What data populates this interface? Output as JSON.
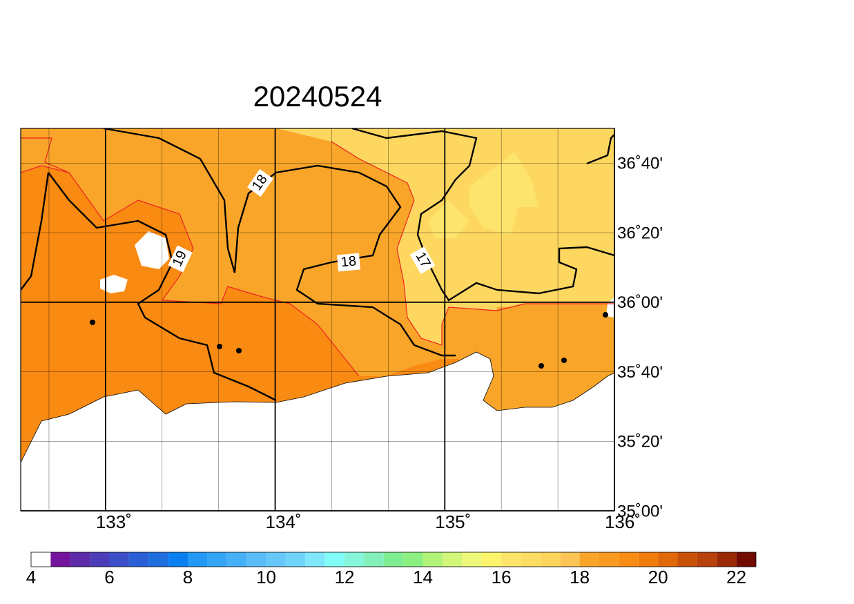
{
  "title": "20240524",
  "map": {
    "xlim": [
      132.5,
      136
    ],
    "ylim": [
      35,
      36.8333
    ],
    "xticks": [
      {
        "value": 133,
        "label": "133˚"
      },
      {
        "value": 134,
        "label": "134˚"
      },
      {
        "value": 135,
        "label": "135˚"
      },
      {
        "value": 136,
        "label": "136˚"
      }
    ],
    "yticks": [
      {
        "value": 36.6667,
        "label": "36˚40'"
      },
      {
        "value": 36.3333,
        "label": "36˚20'"
      },
      {
        "value": 36,
        "label": "36˚00'"
      },
      {
        "value": 35.6667,
        "label": "35˚40'"
      },
      {
        "value": 35.3333,
        "label": "35˚20'"
      },
      {
        "value": 35,
        "label": "35˚00'"
      }
    ]
  },
  "contour_labels": [
    18,
    19,
    18,
    17
  ],
  "colorbar": {
    "lim": [
      4,
      22.5
    ],
    "ticks": [
      4,
      6,
      8,
      10,
      12,
      14,
      16,
      18,
      20,
      22
    ],
    "colors": [
      "#ffffff",
      "#74149c",
      "#5d2aa8",
      "#4b3cb8",
      "#3c4fc8",
      "#2b5fd6",
      "#1e6ee0",
      "#0a7ff0",
      "#2398f5",
      "#34a4f5",
      "#45b0f5",
      "#58bdf6",
      "#66c8f8",
      "#70d4fa",
      "#80e6fc",
      "#82fcf6",
      "#86f5da",
      "#82f0b8",
      "#7eed92",
      "#8cf080",
      "#b2f47a",
      "#d2f67a",
      "#eef878",
      "#fdf46e",
      "#fde46a",
      "#fddc64",
      "#fdd45c",
      "#fbc454",
      "#f9a52a",
      "#f99a20",
      "#f98c14",
      "#f07c0a",
      "#e06808",
      "#c8520a",
      "#b8420c",
      "#9a2a06",
      "#720a00"
    ]
  }
}
